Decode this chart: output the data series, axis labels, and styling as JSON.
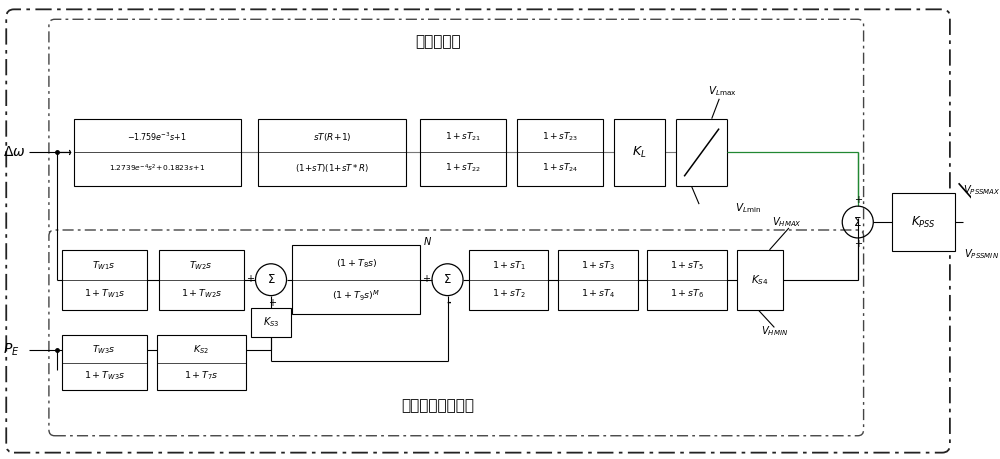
{
  "bg": "#ffffff",
  "upper_label": "超低频分支",
  "lower_label": "加速功率积分分支",
  "fig_w": 10.0,
  "fig_h": 4.59,
  "dpi": 100
}
